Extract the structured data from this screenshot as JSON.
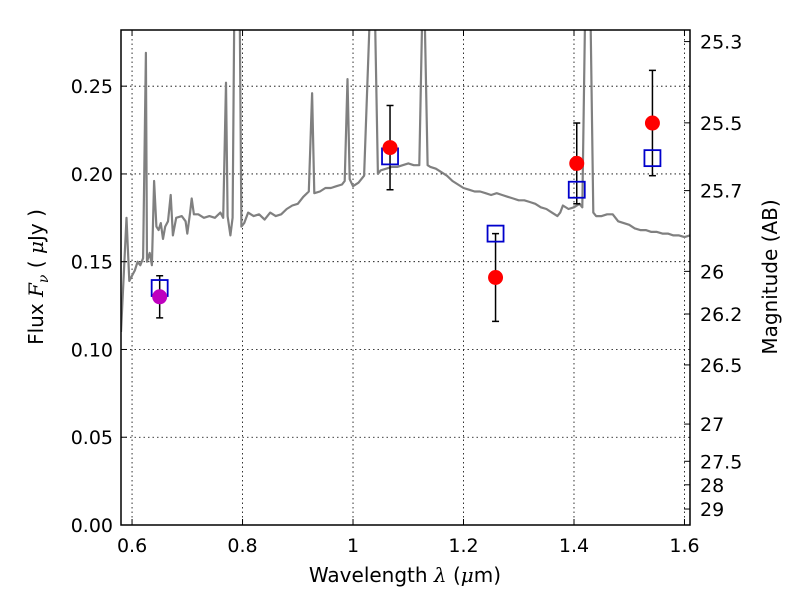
{
  "chart_data": {
    "type": "scatter",
    "title": "",
    "xlabel_prefix": "Wavelength  ",
    "xlabel_symbol": "λ",
    "xlabel_units": " (",
    "xlabel_mu": "μ",
    "xlabel_suffix": "m)",
    "ylabel_prefix": "Flux  ",
    "ylabel_symbol": "F",
    "ylabel_sub": "ν",
    "ylabel_mid": "  ( ",
    "ylabel_mu": "μ",
    "ylabel_suffix": "Jy )",
    "y2label": "Magnitude (AB)",
    "xlim": [
      0.58,
      1.61
    ],
    "ylim": [
      0.0,
      0.282
    ],
    "xticks": [
      0.6,
      0.8,
      1.0,
      1.2,
      1.4,
      1.6
    ],
    "xtick_labels": [
      "0.6",
      "0.8",
      "1",
      "1.2",
      "1.4",
      "1.6"
    ],
    "yticks": [
      0.0,
      0.05,
      0.1,
      0.15,
      0.2,
      0.25
    ],
    "ytick_labels": [
      "0.00",
      "0.05",
      "0.10",
      "0.15",
      "0.20",
      "0.25"
    ],
    "y2ticks": [
      {
        "label": "25.3",
        "flux": 0.2754
      },
      {
        "label": "25.5",
        "flux": 0.2291
      },
      {
        "label": "25.7",
        "flux": 0.1905
      },
      {
        "label": "26",
        "flux": 0.1445
      },
      {
        "label": "26.2",
        "flux": 0.1202
      },
      {
        "label": "26.5",
        "flux": 0.0912
      },
      {
        "label": "27",
        "flux": 0.0575
      },
      {
        "label": "27.5",
        "flux": 0.0363
      },
      {
        "label": "28",
        "flux": 0.0229
      },
      {
        "label": "29",
        "flux": 0.0091
      }
    ],
    "grid": true,
    "colors": {
      "spectrum": "#808080",
      "observed": "#ff0000",
      "observed_alt": "#bf00bf",
      "model": "#0000cc",
      "errorbar": "#000000"
    },
    "observed": [
      {
        "x": 0.65,
        "y": 0.13,
        "yerr_low": 0.012,
        "yerr_high": 0.012,
        "color": "#bf00bf"
      },
      {
        "x": 1.067,
        "y": 0.215,
        "yerr_low": 0.024,
        "yerr_high": 0.024,
        "color": "#ff0000"
      },
      {
        "x": 1.258,
        "y": 0.141,
        "yerr_low": 0.025,
        "yerr_high": 0.025,
        "color": "#ff0000"
      },
      {
        "x": 1.405,
        "y": 0.206,
        "yerr_low": 0.023,
        "yerr_high": 0.023,
        "color": "#ff0000"
      },
      {
        "x": 1.542,
        "y": 0.229,
        "yerr_low": 0.03,
        "yerr_high": 0.03,
        "color": "#ff0000"
      }
    ],
    "model_points": [
      {
        "x": 0.65,
        "y": 0.135
      },
      {
        "x": 1.067,
        "y": 0.21
      },
      {
        "x": 1.258,
        "y": 0.166
      },
      {
        "x": 1.405,
        "y": 0.191
      },
      {
        "x": 1.542,
        "y": 0.209
      }
    ],
    "spectrum": [
      [
        0.58,
        0.11
      ],
      [
        0.59,
        0.175
      ],
      [
        0.595,
        0.139
      ],
      [
        0.6,
        0.142
      ],
      [
        0.605,
        0.145
      ],
      [
        0.61,
        0.15
      ],
      [
        0.615,
        0.148
      ],
      [
        0.62,
        0.152
      ],
      [
        0.625,
        0.269
      ],
      [
        0.627,
        0.15
      ],
      [
        0.632,
        0.155
      ],
      [
        0.636,
        0.148
      ],
      [
        0.64,
        0.196
      ],
      [
        0.644,
        0.17
      ],
      [
        0.648,
        0.168
      ],
      [
        0.652,
        0.172
      ],
      [
        0.656,
        0.163
      ],
      [
        0.66,
        0.17
      ],
      [
        0.665,
        0.173
      ],
      [
        0.67,
        0.188
      ],
      [
        0.674,
        0.165
      ],
      [
        0.68,
        0.175
      ],
      [
        0.69,
        0.176
      ],
      [
        0.697,
        0.173
      ],
      [
        0.7,
        0.166
      ],
      [
        0.705,
        0.178
      ],
      [
        0.708,
        0.186
      ],
      [
        0.712,
        0.177
      ],
      [
        0.72,
        0.177
      ],
      [
        0.73,
        0.175
      ],
      [
        0.74,
        0.176
      ],
      [
        0.75,
        0.175
      ],
      [
        0.76,
        0.178
      ],
      [
        0.765,
        0.175
      ],
      [
        0.77,
        0.252
      ],
      [
        0.773,
        0.176
      ],
      [
        0.778,
        0.165
      ],
      [
        0.782,
        0.175
      ],
      [
        0.785,
        0.287
      ],
      [
        0.79,
        0.287
      ],
      [
        0.795,
        0.287
      ],
      [
        0.798,
        0.17
      ],
      [
        0.803,
        0.172
      ],
      [
        0.81,
        0.178
      ],
      [
        0.82,
        0.176
      ],
      [
        0.83,
        0.177
      ],
      [
        0.84,
        0.174
      ],
      [
        0.85,
        0.178
      ],
      [
        0.86,
        0.176
      ],
      [
        0.87,
        0.177
      ],
      [
        0.88,
        0.18
      ],
      [
        0.89,
        0.182
      ],
      [
        0.9,
        0.183
      ],
      [
        0.91,
        0.187
      ],
      [
        0.92,
        0.19
      ],
      [
        0.926,
        0.246
      ],
      [
        0.93,
        0.189
      ],
      [
        0.94,
        0.19
      ],
      [
        0.95,
        0.192
      ],
      [
        0.96,
        0.192
      ],
      [
        0.97,
        0.193
      ],
      [
        0.98,
        0.194
      ],
      [
        0.985,
        0.196
      ],
      [
        0.99,
        0.254
      ],
      [
        0.994,
        0.197
      ],
      [
        1.0,
        0.193
      ],
      [
        1.01,
        0.195
      ],
      [
        1.02,
        0.199
      ],
      [
        1.03,
        0.287
      ],
      [
        1.04,
        0.287
      ],
      [
        1.045,
        0.2
      ],
      [
        1.05,
        0.202
      ],
      [
        1.06,
        0.203
      ],
      [
        1.07,
        0.204
      ],
      [
        1.08,
        0.204
      ],
      [
        1.09,
        0.205
      ],
      [
        1.1,
        0.206
      ],
      [
        1.11,
        0.205
      ],
      [
        1.12,
        0.205
      ],
      [
        1.125,
        0.287
      ],
      [
        1.13,
        0.287
      ],
      [
        1.135,
        0.205
      ],
      [
        1.14,
        0.204
      ],
      [
        1.15,
        0.203
      ],
      [
        1.16,
        0.201
      ],
      [
        1.17,
        0.199
      ],
      [
        1.18,
        0.196
      ],
      [
        1.19,
        0.194
      ],
      [
        1.2,
        0.192
      ],
      [
        1.21,
        0.191
      ],
      [
        1.22,
        0.19
      ],
      [
        1.23,
        0.19
      ],
      [
        1.24,
        0.189
      ],
      [
        1.25,
        0.188
      ],
      [
        1.26,
        0.189
      ],
      [
        1.27,
        0.188
      ],
      [
        1.28,
        0.187
      ],
      [
        1.29,
        0.186
      ],
      [
        1.3,
        0.185
      ],
      [
        1.31,
        0.185
      ],
      [
        1.32,
        0.184
      ],
      [
        1.33,
        0.183
      ],
      [
        1.34,
        0.181
      ],
      [
        1.35,
        0.18
      ],
      [
        1.36,
        0.178
      ],
      [
        1.37,
        0.176
      ],
      [
        1.375,
        0.178
      ],
      [
        1.38,
        0.182
      ],
      [
        1.39,
        0.18
      ],
      [
        1.4,
        0.181
      ],
      [
        1.41,
        0.183
      ],
      [
        1.415,
        0.181
      ],
      [
        1.42,
        0.287
      ],
      [
        1.43,
        0.287
      ],
      [
        1.435,
        0.178
      ],
      [
        1.44,
        0.176
      ],
      [
        1.45,
        0.176
      ],
      [
        1.46,
        0.177
      ],
      [
        1.47,
        0.177
      ],
      [
        1.48,
        0.173
      ],
      [
        1.49,
        0.172
      ],
      [
        1.5,
        0.171
      ],
      [
        1.51,
        0.169
      ],
      [
        1.52,
        0.168
      ],
      [
        1.53,
        0.168
      ],
      [
        1.54,
        0.167
      ],
      [
        1.55,
        0.167
      ],
      [
        1.56,
        0.166
      ],
      [
        1.57,
        0.166
      ],
      [
        1.58,
        0.165
      ],
      [
        1.59,
        0.165
      ],
      [
        1.6,
        0.164
      ],
      [
        1.61,
        0.165
      ]
    ]
  }
}
